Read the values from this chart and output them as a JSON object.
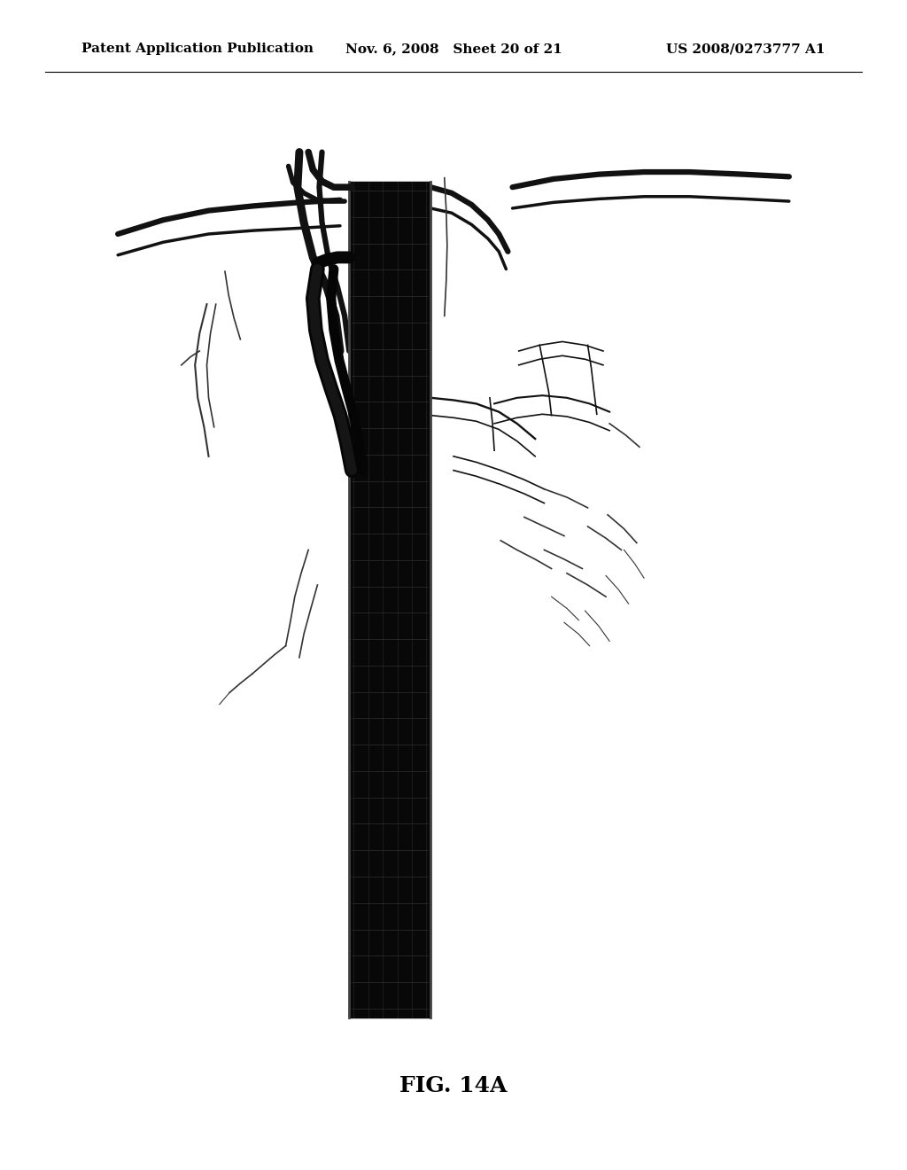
{
  "header_left": "Patent Application Publication",
  "header_center": "Nov. 6, 2008   Sheet 20 of 21",
  "header_right": "US 2008/0273777 A1",
  "figure_label": "FIG. 14A",
  "background_color": "#ffffff",
  "header_font_size": 11,
  "figure_label_font_size": 18
}
